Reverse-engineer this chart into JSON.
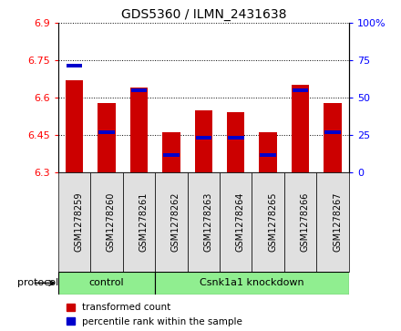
{
  "title": "GDS5360 / ILMN_2431638",
  "samples": [
    "GSM1278259",
    "GSM1278260",
    "GSM1278261",
    "GSM1278262",
    "GSM1278263",
    "GSM1278264",
    "GSM1278265",
    "GSM1278266",
    "GSM1278267"
  ],
  "red_values": [
    6.67,
    6.58,
    6.64,
    6.46,
    6.55,
    6.54,
    6.46,
    6.65,
    6.58
  ],
  "blue_values": [
    6.73,
    6.46,
    6.63,
    6.37,
    6.44,
    6.44,
    6.37,
    6.63,
    6.46
  ],
  "ylim_left": [
    6.3,
    6.9
  ],
  "ylim_right": [
    0,
    100
  ],
  "yticks_left": [
    6.3,
    6.45,
    6.6,
    6.75,
    6.9
  ],
  "yticks_right": [
    0,
    25,
    50,
    75,
    100
  ],
  "bar_width": 0.55,
  "bar_color": "#cc0000",
  "blue_color": "#0000cc",
  "baseline": 6.3,
  "control_label": "control",
  "knockdown_label": "Csnk1a1 knockdown",
  "control_count": 3,
  "protocol_label": "protocol",
  "legend_red": "transformed count",
  "legend_blue": "percentile rank within the sample",
  "grid_color": "black",
  "bg_color": "#e0e0e0",
  "plot_bg": "white",
  "green_color": "#90ee90"
}
